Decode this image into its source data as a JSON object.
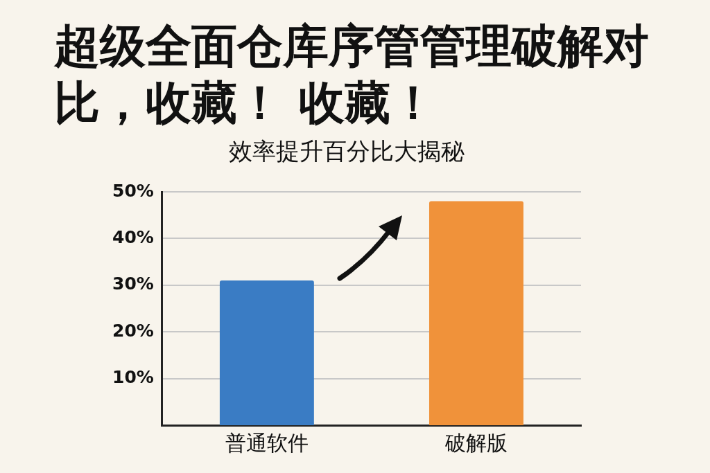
{
  "chart_data": {
    "type": "bar",
    "title": "超级全面仓库序管管理破解对比，收藏！ 收藏！",
    "subtitle": "效率提升百分比大揭秘",
    "categories": [
      "普通软件",
      "破解版"
    ],
    "values": [
      31,
      48
    ],
    "colors": [
      "#3a7cc4",
      "#f0923a"
    ],
    "ylim": [
      0,
      50
    ],
    "yticks": [
      {
        "value": 10,
        "label": "10%"
      },
      {
        "value": 20,
        "label": "20%"
      },
      {
        "value": 30,
        "label": "30%"
      },
      {
        "value": 40,
        "label": "40%"
      },
      {
        "value": 50,
        "label": "50%"
      }
    ],
    "grid": "y",
    "legend": false
  }
}
